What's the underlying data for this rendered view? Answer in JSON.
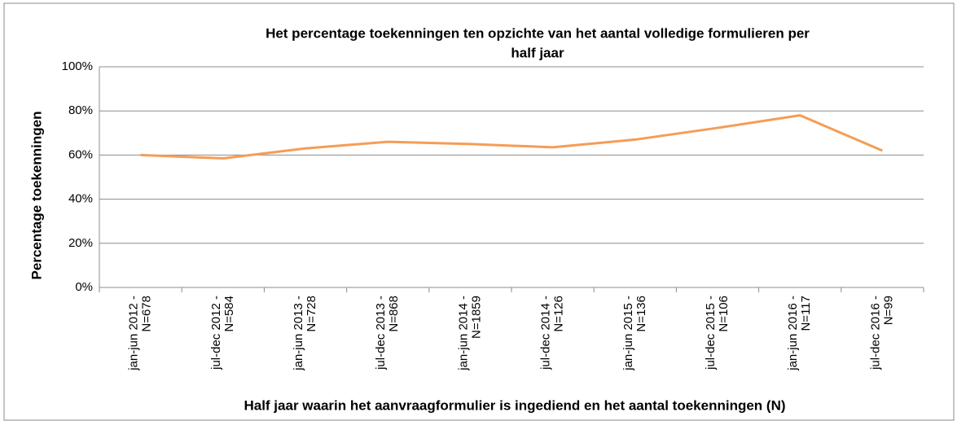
{
  "chart_data": {
    "type": "line",
    "title": [
      "Het percentage toekenningen ten opzichte van het aantal volledige formulieren per",
      "half jaar"
    ],
    "y_label": "Percentage toekenningen",
    "x_label": "Half jaar waarin het aanvraagformulier is ingediend en het aantal toekenningen (N)",
    "categories": [
      [
        "jan-jun 2012 -",
        "N=678"
      ],
      [
        "jul-dec 2012 -",
        "N=584"
      ],
      [
        "jan-jun 2013 -",
        "N=728"
      ],
      [
        "jul-dec 2013 -",
        "N=868"
      ],
      [
        "jan-jun 2014 -",
        "N=1859"
      ],
      [
        "jul-dec 2014 -",
        "N=126"
      ],
      [
        "jan-jun 2015 -",
        "N=136"
      ],
      [
        "jul-dec 2015 -",
        "N=106"
      ],
      [
        "jan-jun 2016 -",
        "N=117"
      ],
      [
        "jul-dec 2016 -",
        "N=99"
      ]
    ],
    "series": [
      {
        "color": "#f59d56",
        "values": [
          60,
          58.5,
          63,
          66,
          65,
          63.5,
          67,
          72.3,
          78,
          62
        ]
      }
    ],
    "ylim": [
      0,
      100
    ],
    "yticks": [
      {
        "value": 0,
        "label": "0%"
      },
      {
        "value": 20,
        "label": "20%"
      },
      {
        "value": 40,
        "label": "40%"
      },
      {
        "value": 60,
        "label": "60%"
      },
      {
        "value": 80,
        "label": "80%"
      },
      {
        "value": 100,
        "label": "100%"
      }
    ],
    "grid": true
  }
}
